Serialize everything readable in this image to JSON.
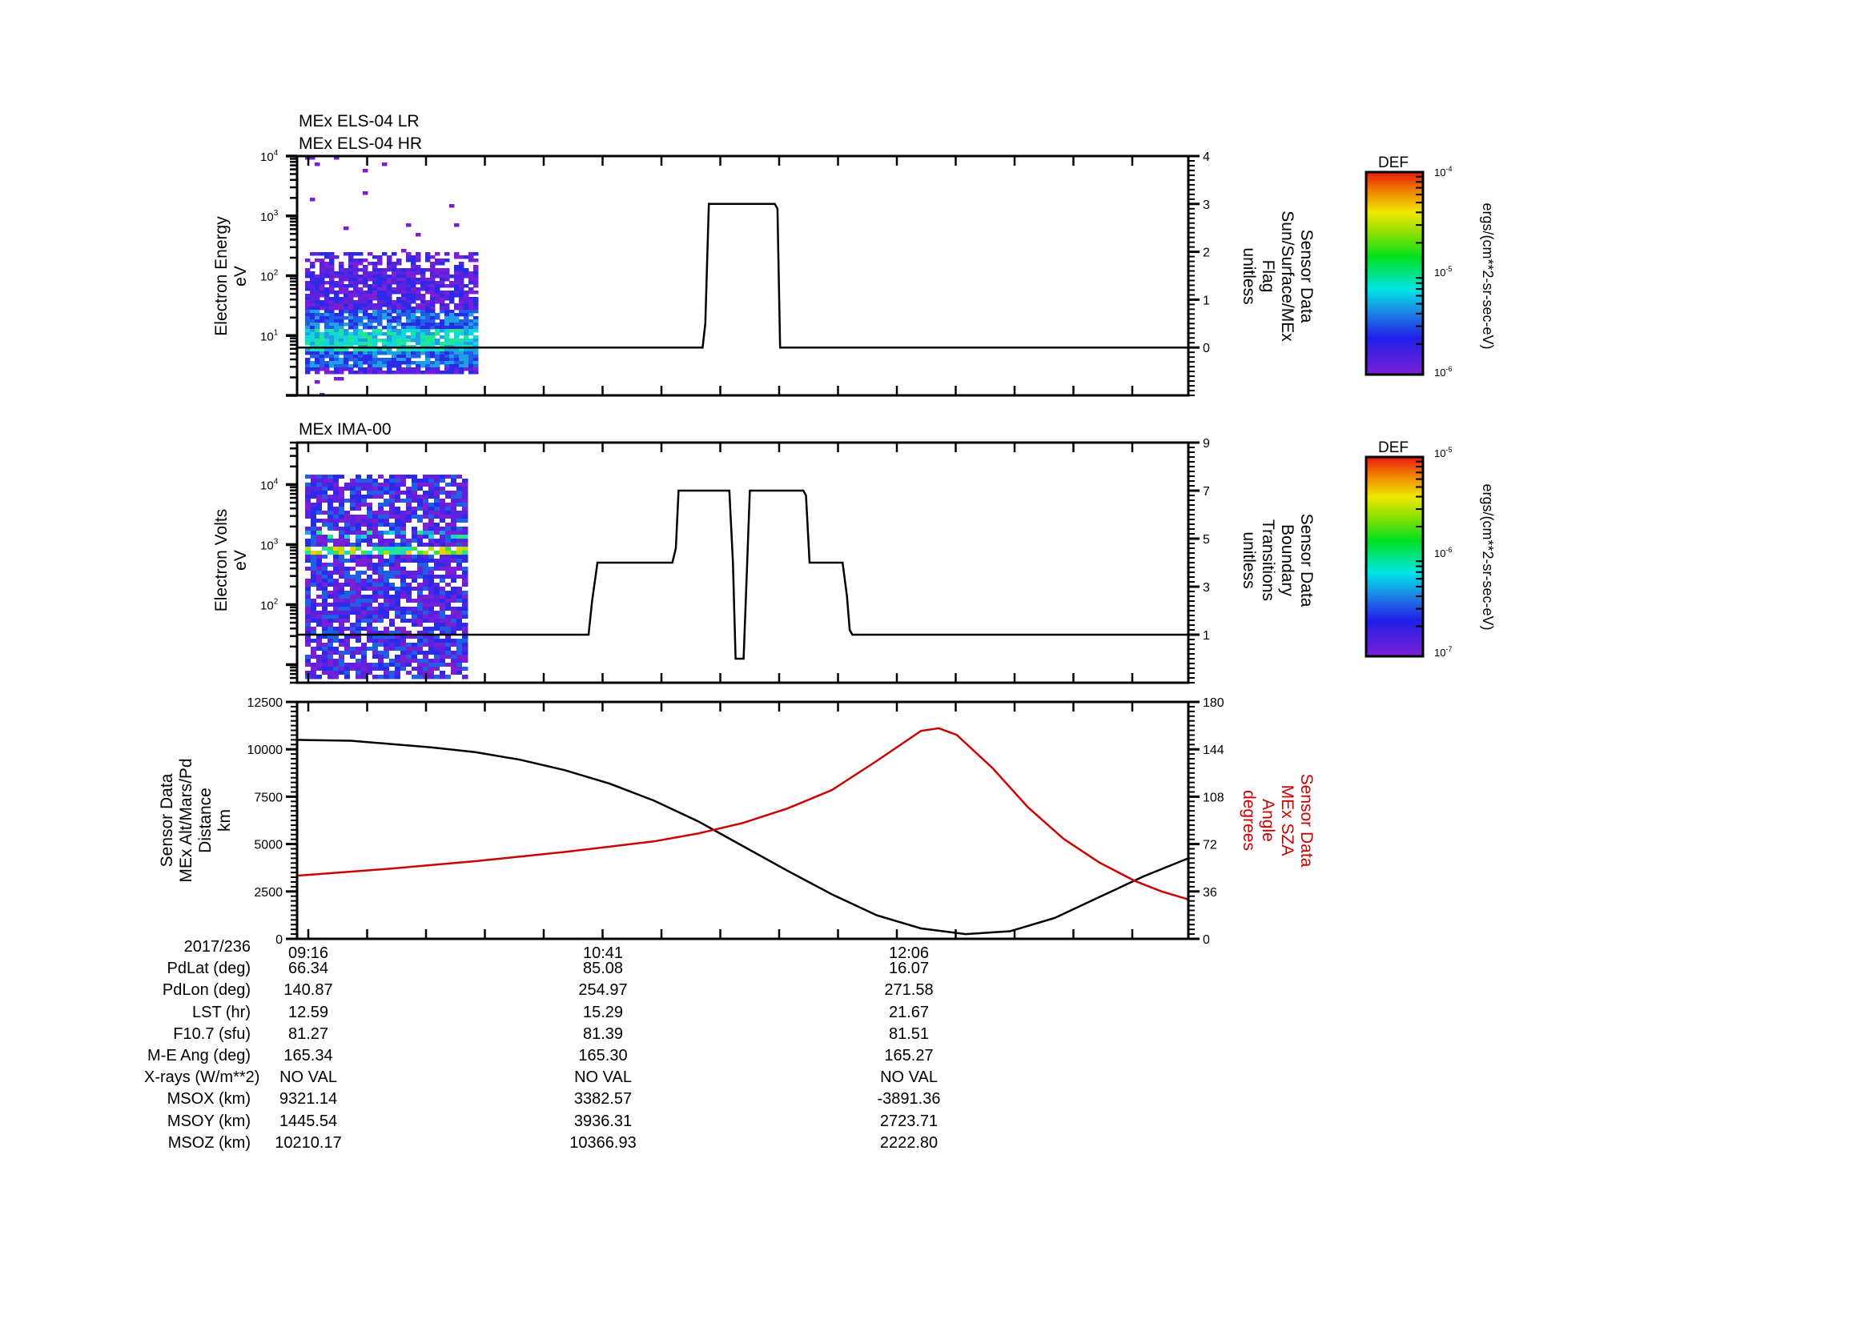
{
  "chart_data": [
    {
      "type": "heatmap",
      "panel": "top",
      "titles": [
        "MEx ELS-04 LR",
        "MEx ELS-04 HR"
      ],
      "ylabel": [
        "Electron Energy",
        "eV"
      ],
      "yscale": "log",
      "ylim": [
        1,
        10000
      ],
      "yticks": [
        {
          "label": "10",
          "exp": "1",
          "value": 10
        },
        {
          "label": "10",
          "exp": "2",
          "value": 100
        },
        {
          "label": "10",
          "exp": "3",
          "value": 1000
        },
        {
          "label": "10",
          "exp": "4",
          "value": 10000
        }
      ],
      "spectrogram": {
        "x_start": "09:16",
        "x_end_fraction": 0.2,
        "energy_band_eV": [
          2.5,
          250
        ],
        "peak_band_eV": [
          6,
          14
        ],
        "note": "blue/purple with cyan-green core ~10 eV"
      },
      "overlay": {
        "ylabel": [
          "Sensor Data",
          "Sun/Surface/MEx",
          "Flag",
          "unitless"
        ],
        "ylim": [
          -1,
          4
        ],
        "yticks": [
          0,
          1,
          2,
          3,
          4
        ],
        "series": [
          {
            "name": "Sun/Surface/MEx Flag",
            "color": "#000000",
            "points": [
              [
                0,
                0
              ],
              [
                0.455,
                0
              ],
              [
                0.458,
                0.5
              ],
              [
                0.462,
                3
              ],
              [
                0.536,
                3
              ],
              [
                0.539,
                2.9
              ],
              [
                0.542,
                0
              ],
              [
                1,
                0
              ]
            ]
          }
        ]
      },
      "colorbar": {
        "title": "DEF",
        "unit": "ergs/(cm**2-sr-sec-eV)",
        "ticks": [
          {
            "base": "10",
            "exp": "-4"
          },
          {
            "base": "10",
            "exp": "-5"
          },
          {
            "base": "10",
            "exp": "-6"
          }
        ]
      }
    },
    {
      "type": "heatmap",
      "panel": "middle",
      "titles": [
        "MEx IMA-00"
      ],
      "ylabel": [
        "Electron Volts",
        "eV"
      ],
      "yscale": "log",
      "ylim": [
        5,
        50000
      ],
      "yticks": [
        {
          "label": "10",
          "exp": "2",
          "value": 100
        },
        {
          "label": "10",
          "exp": "3",
          "value": 1000
        },
        {
          "label": "10",
          "exp": "4",
          "value": 10000
        }
      ],
      "spectrogram": {
        "x_start": "09:16",
        "x_end_fraction": 0.19,
        "energy_band_eV": [
          6,
          15000
        ],
        "bright_bands_eV": [
          800,
          1500
        ],
        "note": "blue/purple noise with yellow-green banded streaks near 1 keV"
      },
      "overlay": {
        "ylabel": [
          "Sensor Data",
          "Boundary",
          "Transitions",
          "unitless"
        ],
        "ylim": [
          -1,
          9
        ],
        "yticks": [
          1,
          3,
          5,
          7,
          9
        ],
        "series": [
          {
            "name": "Boundary Transitions",
            "color": "#000000",
            "points": [
              [
                0,
                1
              ],
              [
                0.327,
                1
              ],
              [
                0.331,
                2.4
              ],
              [
                0.337,
                4
              ],
              [
                0.421,
                4
              ],
              [
                0.425,
                4.6
              ],
              [
                0.428,
                7
              ],
              [
                0.485,
                7
              ],
              [
                0.489,
                4
              ],
              [
                0.492,
                0
              ],
              [
                0.501,
                0
              ],
              [
                0.505,
                4
              ],
              [
                0.508,
                7
              ],
              [
                0.568,
                7
              ],
              [
                0.571,
                6.8
              ],
              [
                0.575,
                4
              ],
              [
                0.612,
                4
              ],
              [
                0.617,
                2.6
              ],
              [
                0.62,
                1.2
              ],
              [
                0.623,
                1
              ],
              [
                1,
                1
              ]
            ]
          }
        ]
      },
      "colorbar": {
        "title": "DEF",
        "unit": "ergs/(cm**2-sr-sec-eV)",
        "ticks": [
          {
            "base": "10",
            "exp": "-5"
          },
          {
            "base": "10",
            "exp": "-6"
          },
          {
            "base": "10",
            "exp": "-7"
          }
        ]
      }
    },
    {
      "type": "line",
      "panel": "bottom",
      "ylabel": [
        "Sensor Data",
        "MEx Alt/Mars/Pd",
        "Distance",
        "km"
      ],
      "ylim": [
        0,
        12500
      ],
      "yticks": [
        0,
        2500,
        5000,
        7500,
        10000,
        12500
      ],
      "y2label": [
        "Sensor Data",
        "MEx SZA",
        "Angle",
        "degrees"
      ],
      "y2lim": [
        0,
        180
      ],
      "y2ticks": [
        0,
        36,
        72,
        108,
        144,
        180
      ],
      "x_ticks": [
        "09:16",
        "10:41",
        "12:06"
      ],
      "series": [
        {
          "name": "MEx Alt/Mars/Pd Distance (km)",
          "axis": "left",
          "color": "#000000",
          "points": [
            [
              0,
              10500
            ],
            [
              0.06,
              10450
            ],
            [
              0.1,
              10300
            ],
            [
              0.15,
              10100
            ],
            [
              0.2,
              9850
            ],
            [
              0.25,
              9450
            ],
            [
              0.3,
              8900
            ],
            [
              0.35,
              8200
            ],
            [
              0.4,
              7300
            ],
            [
              0.45,
              6200
            ],
            [
              0.5,
              4900
            ],
            [
              0.55,
              3600
            ],
            [
              0.6,
              2350
            ],
            [
              0.65,
              1250
            ],
            [
              0.7,
              550
            ],
            [
              0.75,
              250
            ],
            [
              0.8,
              400
            ],
            [
              0.85,
              1100
            ],
            [
              0.9,
              2200
            ],
            [
              0.95,
              3300
            ],
            [
              1,
              4250
            ]
          ]
        },
        {
          "name": "MEx SZA Angle (degrees)",
          "axis": "right",
          "color": "#cc0000",
          "points": [
            [
              0,
              48
            ],
            [
              0.1,
              53
            ],
            [
              0.2,
              59
            ],
            [
              0.3,
              66
            ],
            [
              0.4,
              74
            ],
            [
              0.45,
              80
            ],
            [
              0.5,
              88
            ],
            [
              0.55,
              99
            ],
            [
              0.6,
              113
            ],
            [
              0.65,
              135
            ],
            [
              0.7,
              158
            ],
            [
              0.72,
              160
            ],
            [
              0.74,
              155
            ],
            [
              0.78,
              130
            ],
            [
              0.82,
              100
            ],
            [
              0.86,
              76
            ],
            [
              0.9,
              58
            ],
            [
              0.94,
              44
            ],
            [
              0.97,
              36
            ],
            [
              1,
              30
            ]
          ]
        }
      ]
    }
  ],
  "info_table": {
    "rows": [
      {
        "key": "2017/236",
        "values": [
          "09:16",
          "10:41",
          "12:06"
        ]
      },
      {
        "key": "PdLat (deg)",
        "values": [
          "66.34",
          "85.08",
          "16.07"
        ]
      },
      {
        "key": "PdLon (deg)",
        "values": [
          "140.87",
          "254.97",
          "271.58"
        ]
      },
      {
        "key": "LST (hr)",
        "values": [
          "12.59",
          "15.29",
          "21.67"
        ]
      },
      {
        "key": "F10.7 (sfu)",
        "values": [
          "81.27",
          "81.39",
          "81.51"
        ]
      },
      {
        "key": "M-E Ang (deg)",
        "values": [
          "165.34",
          "165.30",
          "165.27"
        ]
      },
      {
        "key": "X-rays (W/m**2)",
        "values": [
          "NO VAL",
          "NO VAL",
          "NO VAL"
        ]
      },
      {
        "key": "MSOX (km)",
        "values": [
          "9321.14",
          "3382.57",
          "-3891.36"
        ]
      },
      {
        "key": "MSOY (km)",
        "values": [
          "1445.54",
          "3936.31",
          "2723.71"
        ]
      },
      {
        "key": "MSOZ (km)",
        "values": [
          "10210.17",
          "10366.93",
          "2222.80"
        ]
      }
    ]
  },
  "colors": {
    "axis": "#000000",
    "sza_line": "#cc0000",
    "background": "#ffffff"
  }
}
